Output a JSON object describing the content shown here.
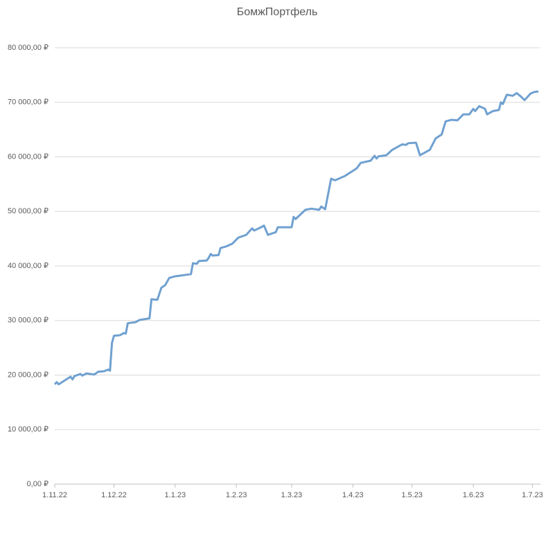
{
  "chart_data": {
    "type": "line",
    "title": "БомжПортфель",
    "x": [
      "1.11.22",
      "2.11.22",
      "3.11.22",
      "9.11.22",
      "10.11.22",
      "11.11.22",
      "14.11.22",
      "15.11.22",
      "17.11.22",
      "21.11.22",
      "23.11.22",
      "26.11.22",
      "28.11.22",
      "29.11.22",
      "30.11.22",
      "1.12.22",
      "4.12.22",
      "6.12.22",
      "7.12.22",
      "8.12.22",
      "12.12.22",
      "14.12.22",
      "19.12.22",
      "20.12.22",
      "23.12.22",
      "25.12.22",
      "27.12.22",
      "29.12.22",
      "1.1.23",
      "9.1.23",
      "10.1.23",
      "12.1.23",
      "13.1.23",
      "17.1.23",
      "18.1.23",
      "19.1.23",
      "20.1.23",
      "23.1.23",
      "24.1.23",
      "27.1.23",
      "30.1.23",
      "2.2.23",
      "6.2.23",
      "9.2.23",
      "10.2.23",
      "13.2.23",
      "15.2.23",
      "17.2.23",
      "21.2.23",
      "22.2.23",
      "1.3.23",
      "2.3.23",
      "3.3.23",
      "8.3.23",
      "11.3.23",
      "15.3.23",
      "16.3.23",
      "18.3.23",
      "21.3.23",
      "23.3.23",
      "28.3.23",
      "3.4.23",
      "5.4.23",
      "10.4.23",
      "12.4.23",
      "13.4.23",
      "14.4.23",
      "18.4.23",
      "21.4.23",
      "24.4.23",
      "26.4.23",
      "28.4.23",
      "29.4.23",
      "3.5.23",
      "5.5.23",
      "10.5.23",
      "13.5.23",
      "16.5.23",
      "18.5.23",
      "21.5.23",
      "24.5.23",
      "27.5.23",
      "30.5.23",
      "1.6.23",
      "2.6.23",
      "4.6.23",
      "7.6.23",
      "8.6.23",
      "11.6.23",
      "14.6.23",
      "15.6.23",
      "16.6.23",
      "18.6.23",
      "21.6.23",
      "23.6.23",
      "25.6.23",
      "27.6.23",
      "30.6.23",
      "2.7.23",
      "4.7.23"
    ],
    "series": [
      {
        "color": "#6fa0d0",
        "values": [
          18300,
          18700,
          18300,
          19700,
          19200,
          19800,
          20200,
          19900,
          20300,
          20100,
          20600,
          20700,
          21000,
          20800,
          25900,
          27200,
          27300,
          27700,
          27600,
          29500,
          29700,
          30100,
          30400,
          33900,
          33800,
          36000,
          36500,
          37800,
          38100,
          38500,
          40500,
          40400,
          40900,
          41000,
          41500,
          42200,
          41900,
          42000,
          43300,
          43600,
          44100,
          45200,
          45700,
          46900,
          46500,
          47000,
          47400,
          45700,
          46200,
          47100,
          47100,
          49000,
          48600,
          50300,
          50500,
          50300,
          50900,
          50400,
          56000,
          55700,
          56500,
          57900,
          58900,
          59300,
          60200,
          59700,
          60100,
          60300,
          61300,
          61900,
          62300,
          62200,
          62500,
          62600,
          60300,
          61300,
          63400,
          64100,
          66500,
          66800,
          66700,
          67800,
          67800,
          68800,
          68400,
          69300,
          68800,
          67800,
          68400,
          68600,
          70000,
          69700,
          71400,
          71200,
          71700,
          71100,
          70400,
          71600,
          71900,
          72000
        ]
      }
    ],
    "xlim": [
      "1.11.22",
      "5.7.23"
    ],
    "xticks": [
      "1.11.22",
      "1.12.22",
      "1.1.23",
      "1.2.23",
      "1.3.23",
      "1.4.23",
      "1.5.23",
      "1.6.23",
      "1.7.23"
    ],
    "ylim": [
      0,
      80000
    ],
    "yticks": [
      {
        "value": 0,
        "label": "0,00 ₽"
      },
      {
        "value": 10000,
        "label": "10 000,00 ₽"
      },
      {
        "value": 20000,
        "label": "20 000,00 ₽"
      },
      {
        "value": 30000,
        "label": "30 000,00 ₽"
      },
      {
        "value": 40000,
        "label": "40 000,00 ₽"
      },
      {
        "value": 50000,
        "label": "50 000,00 ₽"
      },
      {
        "value": 60000,
        "label": "60 000,00 ₽"
      },
      {
        "value": 70000,
        "label": "70 000,00 ₽"
      },
      {
        "value": 80000,
        "label": "80 000,00 ₽"
      }
    ],
    "grid": true
  }
}
